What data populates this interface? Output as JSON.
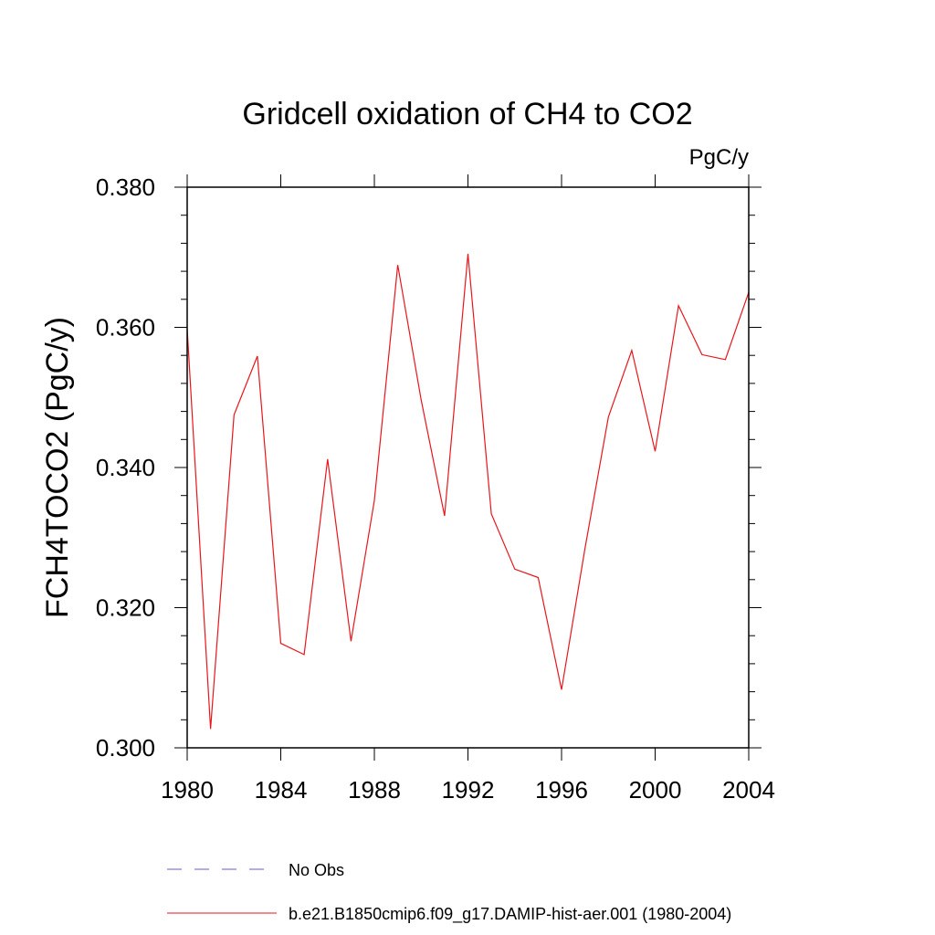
{
  "chart_data": {
    "type": "line",
    "title": "Gridcell oxidation of CH4 to CO2",
    "units_label": "PgC/y",
    "ylabel": "FCH4TOCO2  (PgC/y)",
    "xlabel": "",
    "xlim": [
      1980,
      2004
    ],
    "ylim": [
      0.3,
      0.38
    ],
    "x_ticks": [
      1980,
      1984,
      1988,
      1992,
      1996,
      2000,
      2004
    ],
    "x_tick_labels": [
      "1980",
      "1984",
      "1988",
      "1992",
      "1996",
      "2000",
      "2004"
    ],
    "y_ticks": [
      0.3,
      0.32,
      0.34,
      0.36,
      0.38
    ],
    "y_tick_labels": [
      "0.300",
      "0.320",
      "0.340",
      "0.360",
      "0.380"
    ],
    "grid": false,
    "legend_position": "bottom",
    "series": [
      {
        "name": "b.e21.B1850cmip6.f09_g17.DAMIP-hist-aer.001 (1980-2004)",
        "color": "#e8161b",
        "style": "solid",
        "x": [
          1980,
          1981,
          1982,
          1983,
          1984,
          1985,
          1986,
          1987,
          1988,
          1989,
          1990,
          1991,
          1992,
          1993,
          1994,
          1995,
          1996,
          1997,
          1998,
          1999,
          2000,
          2001,
          2002,
          2003,
          2004
        ],
        "y": [
          0.3598,
          0.3027,
          0.3475,
          0.3559,
          0.3149,
          0.3133,
          0.3412,
          0.3152,
          0.3353,
          0.3689,
          0.3496,
          0.3331,
          0.3705,
          0.3334,
          0.3255,
          0.3243,
          0.3083,
          0.3284,
          0.3472,
          0.3567,
          0.3423,
          0.3631,
          0.3561,
          0.3554,
          0.365
        ]
      }
    ],
    "legend": [
      {
        "label": "No Obs",
        "color": "#6a5acd",
        "style": "dashed"
      },
      {
        "label": "b.e21.B1850cmip6.f09_g17.DAMIP-hist-aer.001 (1980-2004)",
        "color": "#e8161b",
        "style": "solid"
      }
    ]
  }
}
